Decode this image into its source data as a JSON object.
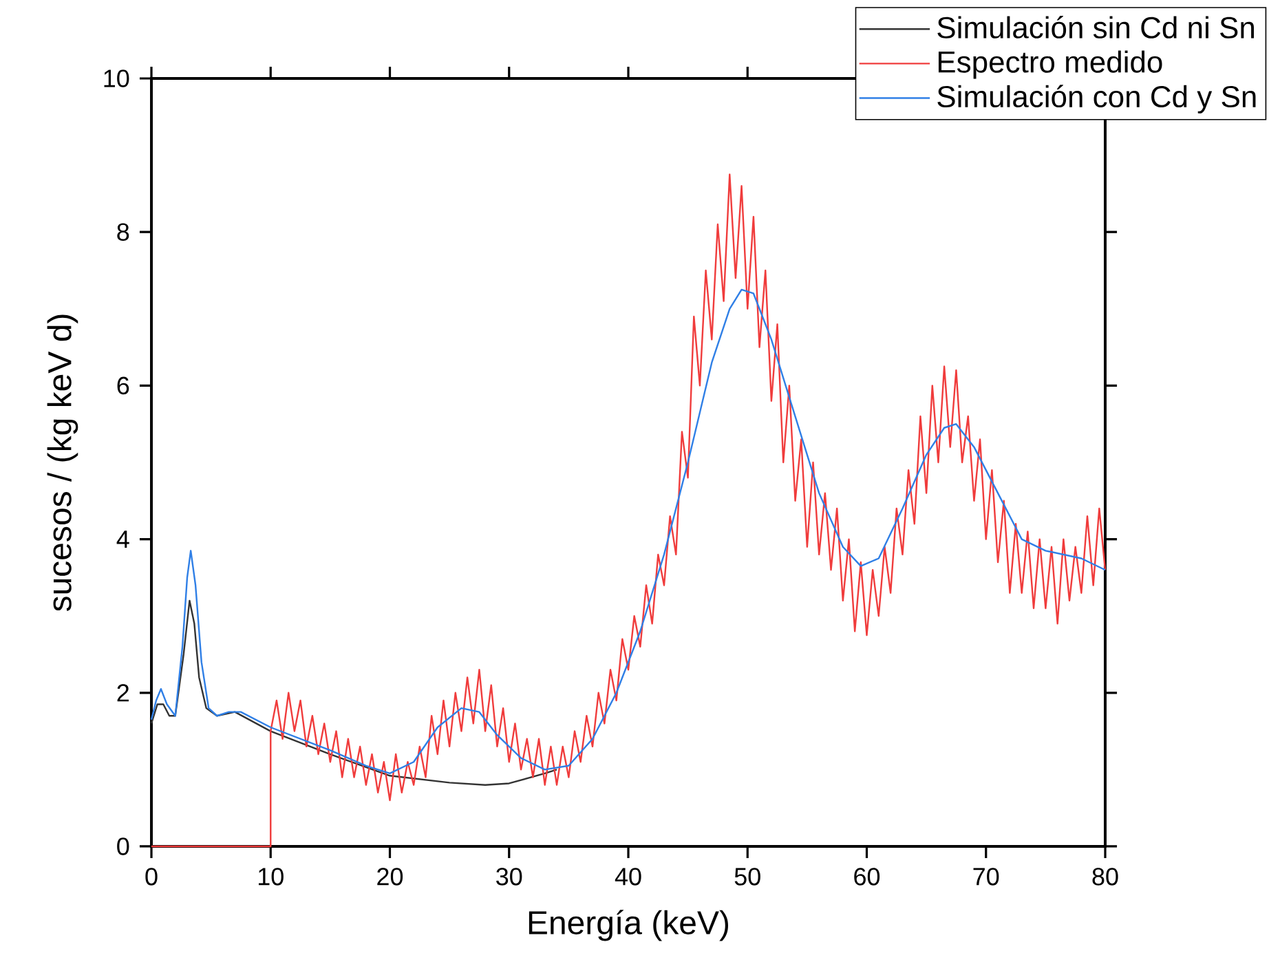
{
  "chart_data": {
    "type": "line",
    "xlabel": "Energía (keV)",
    "ylabel": "sucesos / (kg keV d)",
    "xlim": [
      0,
      80
    ],
    "ylim": [
      0,
      10
    ],
    "xticks": [
      0,
      10,
      20,
      30,
      40,
      50,
      60,
      70,
      80
    ],
    "yticks": [
      0,
      2,
      4,
      6,
      8,
      10
    ],
    "grid": false,
    "legend": "top right",
    "marker": "none",
    "line_style": "solid",
    "series": [
      {
        "name": "Simulación sin Cd ni Sn",
        "color": "#333333",
        "x": [
          0,
          0.5,
          1,
          1.5,
          2,
          2.7,
          3.2,
          3.6,
          4,
          4.6,
          5.5,
          7,
          10,
          15,
          20,
          25,
          28,
          30,
          33,
          34
        ],
        "values": [
          1.6,
          1.85,
          1.85,
          1.7,
          1.7,
          2.5,
          3.2,
          2.9,
          2.2,
          1.8,
          1.7,
          1.75,
          1.5,
          1.2,
          0.92,
          0.83,
          0.8,
          0.82,
          0.95,
          1.0
        ]
      },
      {
        "name": "Espectro medido",
        "color": "#f03c3c",
        "x": [
          0,
          10,
          10,
          10.5,
          11,
          11.5,
          12,
          12.5,
          13,
          13.5,
          14,
          14.5,
          15,
          15.5,
          16,
          16.5,
          17,
          17.5,
          18,
          18.5,
          19,
          19.5,
          20,
          20.5,
          21,
          21.5,
          22,
          22.5,
          23,
          23.5,
          24,
          24.5,
          25,
          25.5,
          26,
          26.5,
          27,
          27.5,
          28,
          28.5,
          29,
          29.5,
          30,
          30.5,
          31,
          31.5,
          32,
          32.5,
          33,
          33.5,
          34,
          34.5,
          35,
          35.5,
          36,
          36.5,
          37,
          37.5,
          38,
          38.5,
          39,
          39.5,
          40,
          40.5,
          41,
          41.5,
          42,
          42.5,
          43,
          43.5,
          44,
          44.5,
          45,
          45.5,
          46,
          46.5,
          47,
          47.5,
          48,
          48.5,
          49,
          49.5,
          50,
          50.5,
          51,
          51.5,
          52,
          52.5,
          53,
          53.5,
          54,
          54.5,
          55,
          55.5,
          56,
          56.5,
          57,
          57.5,
          58,
          58.5,
          59,
          59.5,
          60,
          60.5,
          61,
          61.5,
          62,
          62.5,
          63,
          63.5,
          64,
          64.5,
          65,
          65.5,
          66,
          66.5,
          67,
          67.5,
          68,
          68.5,
          69,
          69.5,
          70,
          70.5,
          71,
          71.5,
          72,
          72.5,
          73,
          73.5,
          74,
          74.5,
          75,
          75.5,
          76,
          76.5,
          77,
          77.5,
          78,
          78.5,
          79,
          79.5,
          80
        ],
        "values": [
          0,
          0,
          1.5,
          1.9,
          1.4,
          2.0,
          1.5,
          1.9,
          1.3,
          1.7,
          1.2,
          1.6,
          1.1,
          1.5,
          0.9,
          1.4,
          0.9,
          1.3,
          0.8,
          1.2,
          0.7,
          1.1,
          0.6,
          1.2,
          0.7,
          1.1,
          0.8,
          1.3,
          0.9,
          1.7,
          1.2,
          1.9,
          1.3,
          2.0,
          1.5,
          2.2,
          1.6,
          2.3,
          1.5,
          2.1,
          1.3,
          1.8,
          1.1,
          1.6,
          1.0,
          1.4,
          0.9,
          1.4,
          0.8,
          1.3,
          0.8,
          1.3,
          0.9,
          1.5,
          1.1,
          1.7,
          1.3,
          2.0,
          1.6,
          2.3,
          1.9,
          2.7,
          2.3,
          3.0,
          2.6,
          3.4,
          2.9,
          3.8,
          3.4,
          4.3,
          3.8,
          5.4,
          4.8,
          6.9,
          6.0,
          7.5,
          6.6,
          8.1,
          7.1,
          8.75,
          7.4,
          8.6,
          7.0,
          8.2,
          6.5,
          7.5,
          5.8,
          6.8,
          5.0,
          6.0,
          4.5,
          5.3,
          3.9,
          5.0,
          3.8,
          4.6,
          3.6,
          4.4,
          3.2,
          4.0,
          2.8,
          3.7,
          2.75,
          3.6,
          3.0,
          3.9,
          3.3,
          4.4,
          3.8,
          4.9,
          4.2,
          5.6,
          4.6,
          6.0,
          5.0,
          6.25,
          5.2,
          6.2,
          5.0,
          5.6,
          4.5,
          5.3,
          4.0,
          4.9,
          3.7,
          4.5,
          3.3,
          4.2,
          3.3,
          4.1,
          3.1,
          4.0,
          3.1,
          3.9,
          2.9,
          4.0,
          3.2,
          3.9,
          3.3,
          4.3,
          3.4,
          4.4,
          3.6
        ]
      },
      {
        "name": "Simulación con Cd y Sn",
        "color": "#2f7fe6",
        "x": [
          0,
          0.4,
          0.8,
          1.3,
          2,
          2.6,
          3.0,
          3.3,
          3.7,
          4.2,
          4.8,
          5.5,
          6.5,
          7.5,
          10,
          15,
          18,
          20,
          22,
          24,
          26,
          27.5,
          29,
          31,
          33,
          35,
          37,
          39,
          41,
          43,
          45,
          47,
          48.5,
          49.5,
          50.5,
          52,
          54,
          56,
          58,
          59.5,
          61,
          63,
          65,
          66.5,
          67.5,
          69,
          71,
          73,
          75,
          78,
          80
        ],
        "values": [
          1.65,
          1.9,
          2.05,
          1.85,
          1.7,
          2.6,
          3.5,
          3.85,
          3.4,
          2.4,
          1.8,
          1.7,
          1.75,
          1.75,
          1.55,
          1.25,
          1.05,
          0.95,
          1.1,
          1.55,
          1.8,
          1.75,
          1.45,
          1.15,
          1.0,
          1.05,
          1.4,
          2.0,
          2.8,
          3.8,
          5.0,
          6.3,
          7.0,
          7.25,
          7.2,
          6.6,
          5.6,
          4.6,
          3.9,
          3.65,
          3.75,
          4.4,
          5.1,
          5.45,
          5.5,
          5.2,
          4.6,
          4.0,
          3.85,
          3.75,
          3.6
        ]
      }
    ]
  }
}
